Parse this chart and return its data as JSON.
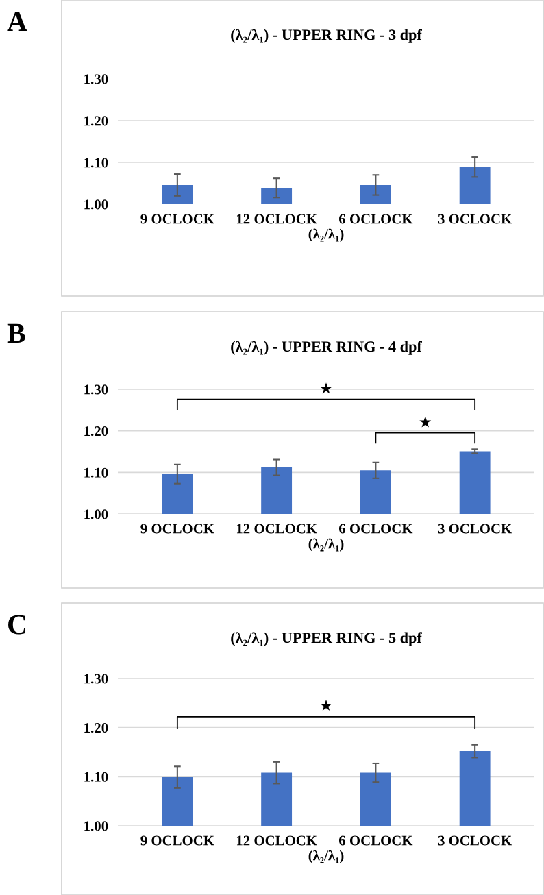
{
  "chart_data": [
    {
      "type": "bar",
      "title": "(λ₂/λ₁) - UPPER RING - 3 dpf",
      "xlabel": "(λ₂/λ₁)",
      "categories": [
        "9 OCLOCK",
        "12 OCLOCK",
        "6 OCLOCK",
        "3 OCLOCK"
      ],
      "values": [
        1.046,
        1.039,
        1.046,
        1.089
      ],
      "errors": [
        0.026,
        0.023,
        0.024,
        0.024
      ],
      "color": "#4472c4",
      "ylim": [
        1.0,
        1.3
      ],
      "yticks": [
        {
          "value": 1.0,
          "label": "1.00"
        },
        {
          "value": 1.1,
          "label": "1.10"
        },
        {
          "value": 1.2,
          "label": "1.20"
        },
        {
          "value": 1.3,
          "label": "1.30"
        }
      ],
      "grid": "y",
      "annotations": [
        "A"
      ]
    },
    {
      "type": "bar",
      "title": "(λ₂/λ₁) - UPPER RING - 4 dpf",
      "xlabel": "(λ₂/λ₁)",
      "categories": [
        "9 OCLOCK",
        "12 OCLOCK",
        "6 OCLOCK",
        "3 OCLOCK"
      ],
      "values": [
        1.096,
        1.112,
        1.105,
        1.151
      ],
      "errors": [
        0.023,
        0.019,
        0.019,
        0.005
      ],
      "color": "#4472c4",
      "ylim": [
        1.0,
        1.3
      ],
      "yticks": [
        {
          "value": 1.0,
          "label": "1.00"
        },
        {
          "value": 1.1,
          "label": "1.10"
        },
        {
          "value": 1.2,
          "label": "1.20"
        },
        {
          "value": 1.3,
          "label": "1.30"
        }
      ],
      "grid": "y",
      "annotations": [
        "B",
        "★",
        "★"
      ]
    },
    {
      "type": "bar",
      "title": "(λ₂/λ₁) - UPPER RING - 5 dpf",
      "xlabel": "(λ₂/λ₁)",
      "categories": [
        "9 OCLOCK",
        "12 OCLOCK",
        "6 OCLOCK",
        "3 OCLOCK"
      ],
      "values": [
        1.099,
        1.108,
        1.108,
        1.152
      ],
      "errors": [
        0.022,
        0.022,
        0.019,
        0.013
      ],
      "color": "#4472c4",
      "ylim": [
        1.0,
        1.3
      ],
      "yticks": [
        {
          "value": 1.0,
          "label": "1.00"
        },
        {
          "value": 1.1,
          "label": "1.10"
        },
        {
          "value": 1.2,
          "label": "1.20"
        },
        {
          "value": 1.3,
          "label": "1.30"
        }
      ],
      "grid": "y",
      "annotations": [
        "C",
        "★"
      ]
    }
  ]
}
